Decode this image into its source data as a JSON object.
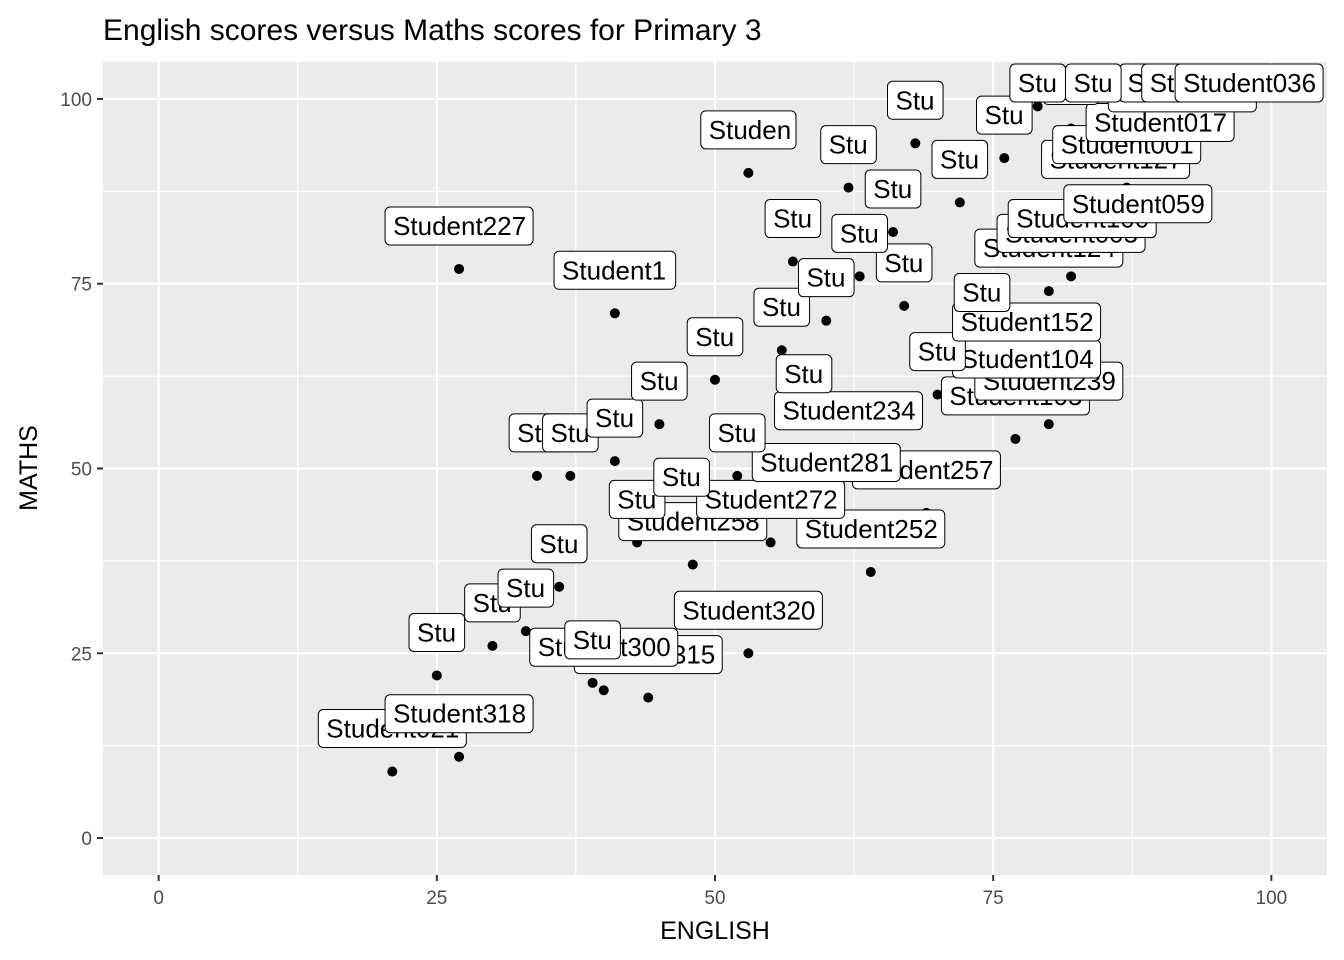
{
  "chart_data": {
    "type": "scatter",
    "title": "English scores versus Maths scores for Primary 3",
    "xlabel": "ENGLISH",
    "ylabel": "MATHS",
    "xlim": [
      -5,
      105
    ],
    "ylim": [
      -5,
      105
    ],
    "x_ticks": [
      0,
      25,
      50,
      75,
      100
    ],
    "y_ticks": [
      0,
      25,
      50,
      75,
      100
    ],
    "x_tick_labels": [
      "0",
      "25",
      "50",
      "75",
      "100"
    ],
    "y_tick_labels": [
      "0",
      "25",
      "50",
      "75",
      "100"
    ],
    "grid": true,
    "legend": "none",
    "point_color": "#000000",
    "panel_color": "#ebebeb",
    "points": [
      {
        "label": "Student036",
        "x": 98,
        "y": 102
      },
      {
        "label": "Student012",
        "x": 95,
        "y": 100
      },
      {
        "label": "Student010",
        "x": 93,
        "y": 98
      },
      {
        "label": "Student015",
        "x": 92,
        "y": 95
      },
      {
        "label": "Student017",
        "x": 90,
        "y": 91
      },
      {
        "label": "Student001",
        "x": 87,
        "y": 88
      },
      {
        "label": "Student127",
        "x": 86,
        "y": 86
      },
      {
        "label": "Student059",
        "x": 88,
        "y": 80
      },
      {
        "label": "Student100",
        "x": 83,
        "y": 78
      },
      {
        "label": "Student005",
        "x": 82,
        "y": 76
      },
      {
        "label": "Student124",
        "x": 80,
        "y": 74
      },
      {
        "label": "Student152",
        "x": 78,
        "y": 64
      },
      {
        "label": "Student239",
        "x": 80,
        "y": 56
      },
      {
        "label": "Student104",
        "x": 78,
        "y": 59
      },
      {
        "label": "Student105",
        "x": 77,
        "y": 54
      },
      {
        "label": "Student234",
        "x": 62,
        "y": 52
      },
      {
        "label": "Student257",
        "x": 69,
        "y": 44
      },
      {
        "label": "Student281",
        "x": 60,
        "y": 45
      },
      {
        "label": "Student252",
        "x": 64,
        "y": 36
      },
      {
        "label": "Student272",
        "x": 55,
        "y": 40
      },
      {
        "label": "Student258",
        "x": 48,
        "y": 37
      },
      {
        "label": "Student320",
        "x": 53,
        "y": 25
      },
      {
        "label": "Student315",
        "x": 44,
        "y": 19
      },
      {
        "label": "Student300",
        "x": 40,
        "y": 20
      },
      {
        "label": "Student318",
        "x": 27,
        "y": 11
      },
      {
        "label": "Student021",
        "x": 21,
        "y": 9
      },
      {
        "label": "Student227",
        "x": 27,
        "y": 77
      },
      {
        "label": "Student1",
        "x": 41,
        "y": 71
      },
      {
        "label": "Studen",
        "x": 53,
        "y": 90
      },
      {
        "label": "Stu",
        "x": 34,
        "y": 49
      },
      {
        "label": "Stu",
        "x": 37,
        "y": 49
      },
      {
        "label": "Stu",
        "x": 41,
        "y": 51
      },
      {
        "label": "Stu",
        "x": 39,
        "y": 21
      },
      {
        "label": "Stu",
        "x": 45,
        "y": 56
      },
      {
        "label": "Stu",
        "x": 50,
        "y": 62
      },
      {
        "label": "Stu",
        "x": 56,
        "y": 66
      },
      {
        "label": "Stu",
        "x": 60,
        "y": 70
      },
      {
        "label": "Stu",
        "x": 66,
        "y": 82
      },
      {
        "label": "Stu",
        "x": 72,
        "y": 86
      },
      {
        "label": "Stu",
        "x": 76,
        "y": 92
      },
      {
        "label": "Stu",
        "x": 82,
        "y": 96
      },
      {
        "label": "Stu",
        "x": 70,
        "y": 60
      },
      {
        "label": "Stu",
        "x": 58,
        "y": 57
      },
      {
        "label": "Stu",
        "x": 52,
        "y": 49
      },
      {
        "label": "Stu",
        "x": 47,
        "y": 43
      },
      {
        "label": "Stu",
        "x": 43,
        "y": 40
      },
      {
        "label": "Stu",
        "x": 36,
        "y": 34
      },
      {
        "label": "Stu",
        "x": 33,
        "y": 28
      },
      {
        "label": "Stu",
        "x": 30,
        "y": 26
      },
      {
        "label": "Stu",
        "x": 25,
        "y": 22
      },
      {
        "label": "Stu",
        "x": 63,
        "y": 76
      },
      {
        "label": "Stu",
        "x": 67,
        "y": 72
      },
      {
        "label": "Stu",
        "x": 74,
        "y": 68
      },
      {
        "label": "Stu",
        "x": 57,
        "y": 78
      },
      {
        "label": "Stu",
        "x": 62,
        "y": 88
      },
      {
        "label": "Stu",
        "x": 68,
        "y": 94
      },
      {
        "label": "Stu",
        "x": 79,
        "y": 99
      },
      {
        "label": "Stu",
        "x": 84,
        "y": 102
      }
    ]
  }
}
